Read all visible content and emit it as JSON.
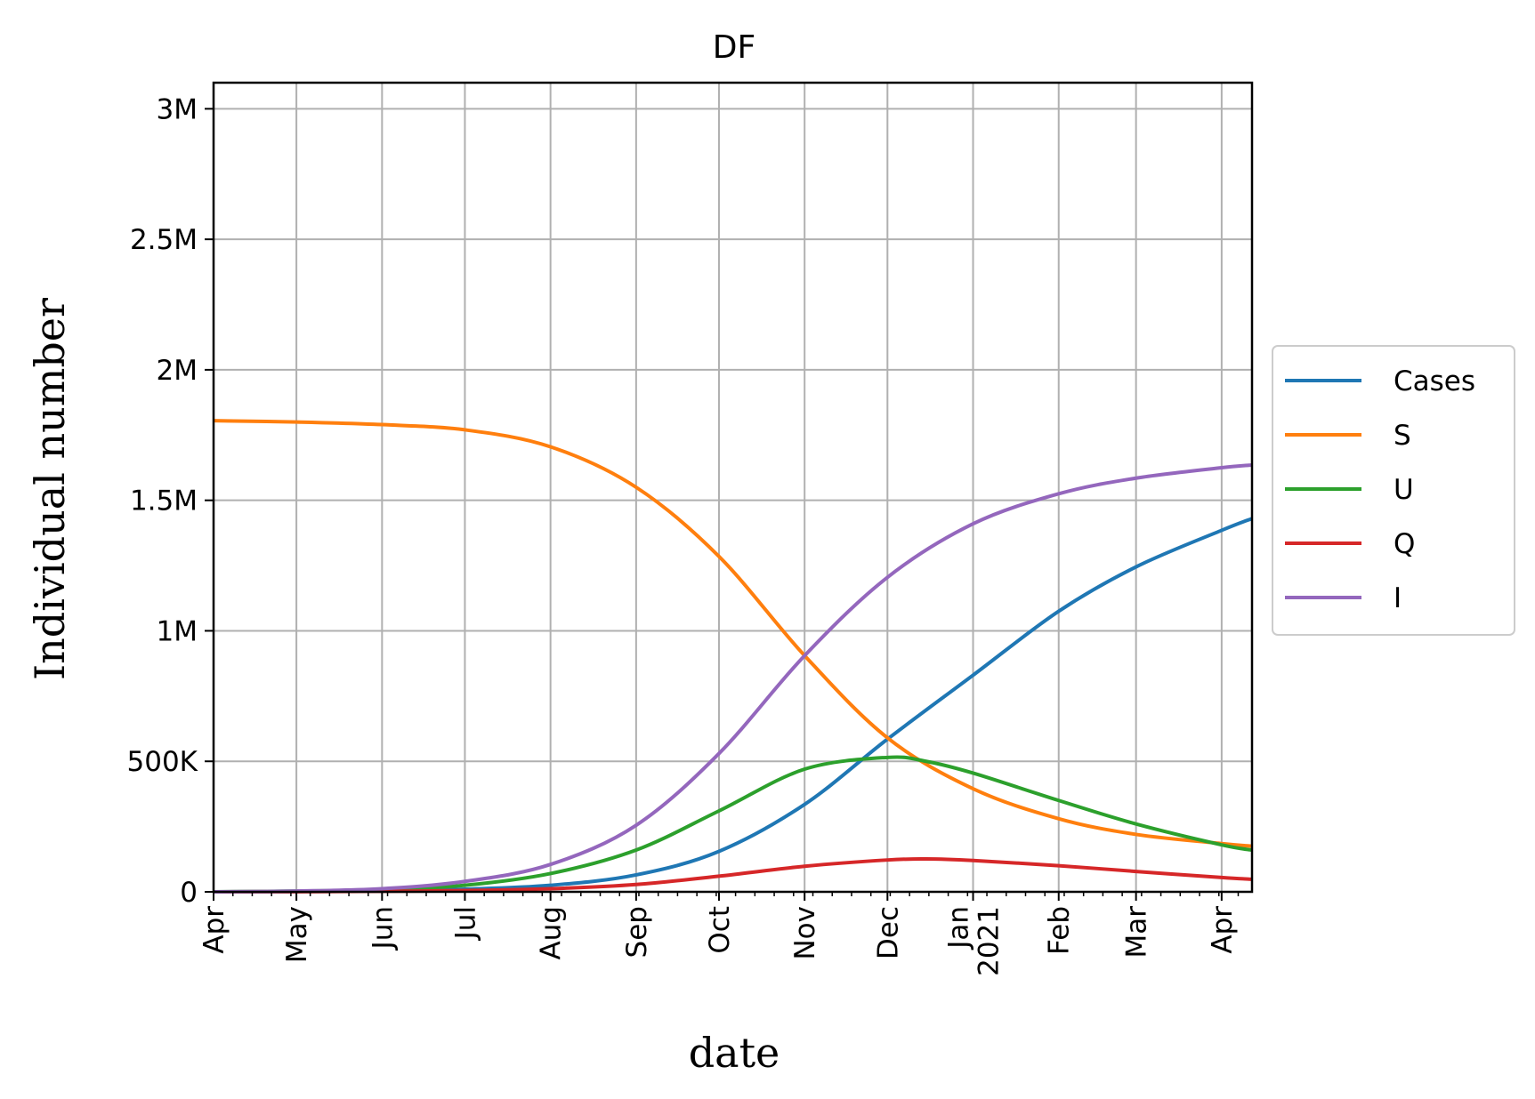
{
  "chart_data": {
    "type": "line",
    "title": "DF",
    "xlabel": "date",
    "ylabel": "Individual number",
    "x_axis": {
      "start": "2020-04-01",
      "end": "2021-04-12",
      "major_ticks": [
        {
          "date": "2020-04-01",
          "label": "Apr"
        },
        {
          "date": "2020-05-01",
          "label": "May"
        },
        {
          "date": "2020-06-01",
          "label": "Jun"
        },
        {
          "date": "2020-07-01",
          "label": "Jul"
        },
        {
          "date": "2020-08-01",
          "label": "Aug"
        },
        {
          "date": "2020-09-01",
          "label": "Sep"
        },
        {
          "date": "2020-10-01",
          "label": "Oct"
        },
        {
          "date": "2020-11-01",
          "label": "Nov"
        },
        {
          "date": "2020-12-01",
          "label": "Dec"
        },
        {
          "date": "2021-01-01",
          "label": "Jan\n2021"
        },
        {
          "date": "2021-02-01",
          "label": "Feb"
        },
        {
          "date": "2021-03-01",
          "label": "Mar"
        },
        {
          "date": "2021-04-01",
          "label": "Apr"
        }
      ],
      "minor_ticks": "weekly"
    },
    "y_axis": {
      "ylim": [
        0,
        3100000
      ],
      "ticks": [
        {
          "value": 0,
          "label": "0"
        },
        {
          "value": 500000,
          "label": "500K"
        },
        {
          "value": 1000000,
          "label": "1M"
        },
        {
          "value": 1500000,
          "label": "1.5M"
        },
        {
          "value": 2000000,
          "label": "2M"
        },
        {
          "value": 2500000,
          "label": "2.5M"
        },
        {
          "value": 3000000,
          "label": "3M"
        }
      ]
    },
    "grid": true,
    "legend_placement": "outside-right",
    "series": [
      {
        "name": "Cases",
        "color": "#1f77b4",
        "points": [
          [
            "2020-04-01",
            0
          ],
          [
            "2020-05-01",
            1000
          ],
          [
            "2020-06-01",
            3000
          ],
          [
            "2020-07-01",
            10000
          ],
          [
            "2020-08-01",
            25000
          ],
          [
            "2020-09-01",
            65000
          ],
          [
            "2020-10-01",
            155000
          ],
          [
            "2020-11-01",
            335000
          ],
          [
            "2020-12-01",
            585000
          ],
          [
            "2021-01-01",
            830000
          ],
          [
            "2021-02-01",
            1075000
          ],
          [
            "2021-03-01",
            1245000
          ],
          [
            "2021-04-01",
            1385000
          ],
          [
            "2021-04-12",
            1430000
          ]
        ]
      },
      {
        "name": "S",
        "color": "#ff7f0e",
        "points": [
          [
            "2020-04-01",
            1805000
          ],
          [
            "2020-05-01",
            1800000
          ],
          [
            "2020-06-01",
            1790000
          ],
          [
            "2020-07-01",
            1770000
          ],
          [
            "2020-08-01",
            1705000
          ],
          [
            "2020-09-01",
            1550000
          ],
          [
            "2020-10-01",
            1285000
          ],
          [
            "2020-11-01",
            905000
          ],
          [
            "2020-12-01",
            590000
          ],
          [
            "2021-01-01",
            395000
          ],
          [
            "2021-02-01",
            280000
          ],
          [
            "2021-03-01",
            220000
          ],
          [
            "2021-04-01",
            185000
          ],
          [
            "2021-04-12",
            175000
          ]
        ]
      },
      {
        "name": "U",
        "color": "#2ca02c",
        "points": [
          [
            "2020-04-01",
            0
          ],
          [
            "2020-05-01",
            3000
          ],
          [
            "2020-06-01",
            8000
          ],
          [
            "2020-07-01",
            25000
          ],
          [
            "2020-08-01",
            70000
          ],
          [
            "2020-09-01",
            160000
          ],
          [
            "2020-10-01",
            310000
          ],
          [
            "2020-11-01",
            470000
          ],
          [
            "2020-12-01",
            515000
          ],
          [
            "2020-12-15",
            500000
          ],
          [
            "2021-01-01",
            455000
          ],
          [
            "2021-02-01",
            350000
          ],
          [
            "2021-03-01",
            260000
          ],
          [
            "2021-04-01",
            180000
          ],
          [
            "2021-04-12",
            160000
          ]
        ]
      },
      {
        "name": "Q",
        "color": "#d62728",
        "points": [
          [
            "2020-04-01",
            0
          ],
          [
            "2020-05-01",
            500
          ],
          [
            "2020-06-01",
            2000
          ],
          [
            "2020-07-01",
            5000
          ],
          [
            "2020-08-01",
            12000
          ],
          [
            "2020-09-01",
            28000
          ],
          [
            "2020-10-01",
            60000
          ],
          [
            "2020-11-01",
            98000
          ],
          [
            "2020-12-01",
            122000
          ],
          [
            "2020-12-15",
            126000
          ],
          [
            "2021-01-01",
            120000
          ],
          [
            "2021-02-01",
            100000
          ],
          [
            "2021-03-01",
            78000
          ],
          [
            "2021-04-01",
            55000
          ],
          [
            "2021-04-12",
            48000
          ]
        ]
      },
      {
        "name": "I",
        "color": "#9467bd",
        "points": [
          [
            "2020-04-01",
            0
          ],
          [
            "2020-05-01",
            3000
          ],
          [
            "2020-06-01",
            12000
          ],
          [
            "2020-07-01",
            40000
          ],
          [
            "2020-08-01",
            105000
          ],
          [
            "2020-09-01",
            255000
          ],
          [
            "2020-10-01",
            530000
          ],
          [
            "2020-11-01",
            905000
          ],
          [
            "2020-12-01",
            1205000
          ],
          [
            "2021-01-01",
            1410000
          ],
          [
            "2021-02-01",
            1525000
          ],
          [
            "2021-03-01",
            1585000
          ],
          [
            "2021-04-01",
            1625000
          ],
          [
            "2021-04-12",
            1635000
          ]
        ]
      }
    ]
  }
}
